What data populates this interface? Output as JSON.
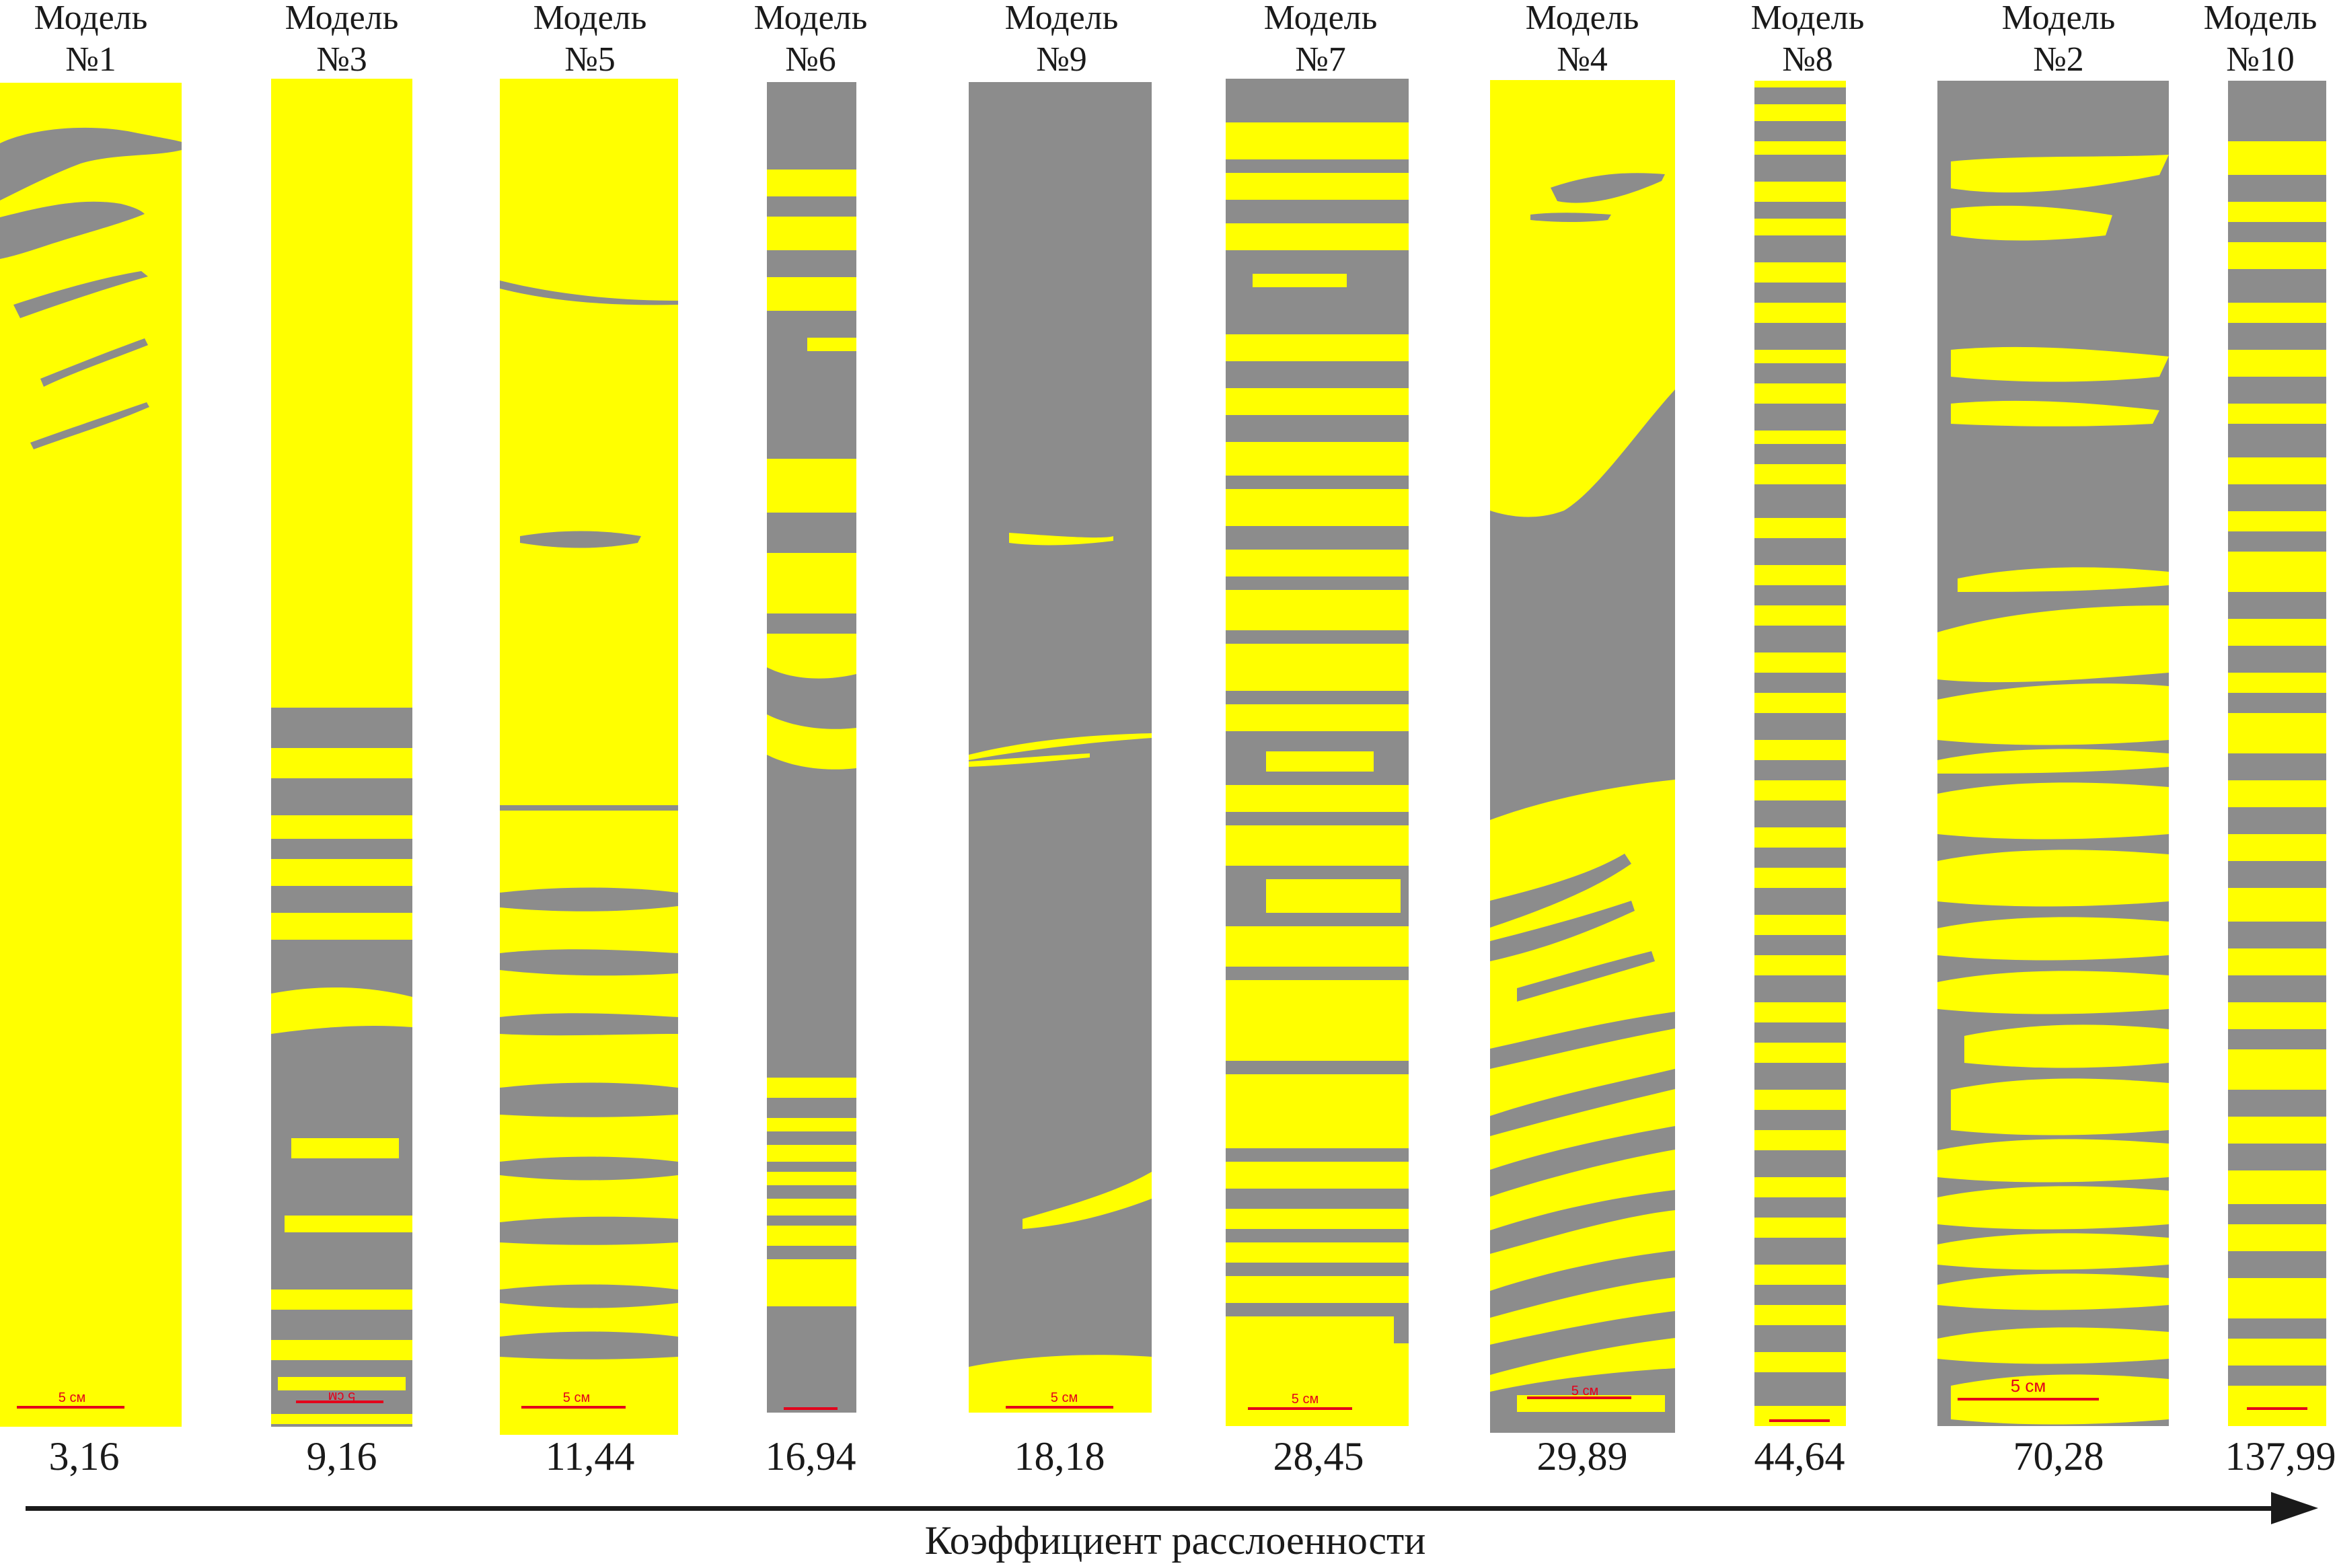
{
  "colors": {
    "yellow": "#ffff00",
    "gray": "#8c8c8c",
    "scale_red": "#e3001b",
    "text": "#1a1a1a"
  },
  "scale_label": "5 см",
  "axis": {
    "label": "Коэффициент расслоенности",
    "icon": "arrow-right-icon"
  },
  "models": [
    {
      "id": "m1",
      "title": [
        "Модель",
        "№1"
      ],
      "coefficient": "3,16",
      "dominant": "yellow"
    },
    {
      "id": "m3",
      "title": [
        "Модель",
        "№3"
      ],
      "coefficient": "9,16",
      "dominant": "yellow"
    },
    {
      "id": "m5",
      "title": [
        "Модель",
        "№5"
      ],
      "coefficient": "11,44",
      "dominant": "yellow"
    },
    {
      "id": "m6",
      "title": [
        "Модель",
        "№6"
      ],
      "coefficient": "16,94",
      "dominant": "gray"
    },
    {
      "id": "m9",
      "title": [
        "Модель",
        "№9"
      ],
      "coefficient": "18,18",
      "dominant": "gray"
    },
    {
      "id": "m7",
      "title": [
        "Модель",
        "№7"
      ],
      "coefficient": "28,45",
      "dominant": "mixed"
    },
    {
      "id": "m4",
      "title": [
        "Модель",
        "№4"
      ],
      "coefficient": "29,89",
      "dominant": "mixed"
    },
    {
      "id": "m8",
      "title": [
        "Модель",
        "№8"
      ],
      "coefficient": "44,64",
      "dominant": "mixed"
    },
    {
      "id": "m2",
      "title": [
        "Модель",
        "№2"
      ],
      "coefficient": "70,28",
      "dominant": "mixed"
    },
    {
      "id": "m10",
      "title": [
        "Модель",
        "№10"
      ],
      "coefficient": "137,99",
      "dominant": "mixed"
    }
  ]
}
